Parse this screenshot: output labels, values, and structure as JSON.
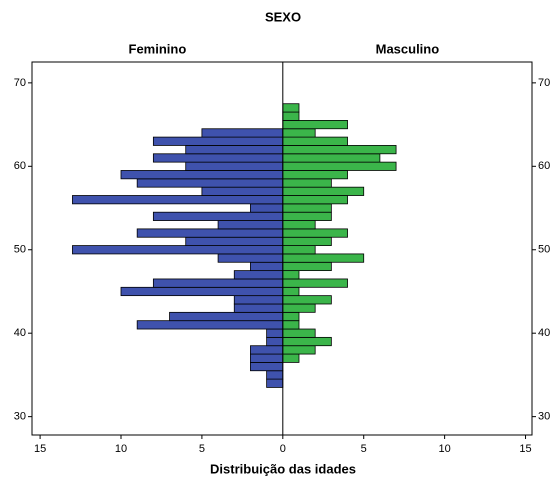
{
  "chart_data": {
    "type": "pyramid",
    "title": "SEXO",
    "xlabel": "Distribuição das idades",
    "y": [
      34,
      35,
      36,
      37,
      38,
      39,
      40,
      41,
      42,
      43,
      44,
      45,
      46,
      47,
      48,
      49,
      50,
      51,
      52,
      53,
      54,
      55,
      56,
      57,
      58,
      59,
      60,
      61,
      62,
      63,
      64,
      65,
      66,
      67
    ],
    "series": [
      {
        "name": "Feminino",
        "side": "left",
        "color": "#3f52ad",
        "values": [
          1,
          1,
          2,
          2,
          2,
          1,
          1,
          9,
          7,
          3,
          3,
          10,
          8,
          3,
          2,
          4,
          13,
          6,
          9,
          4,
          8,
          2,
          13,
          5,
          9,
          10,
          6,
          8,
          6,
          8,
          5,
          0,
          0,
          0
        ]
      },
      {
        "name": "Masculino",
        "side": "right",
        "color": "#3bb54a",
        "values": [
          0,
          0,
          0,
          1,
          2,
          3,
          2,
          1,
          1,
          2,
          3,
          1,
          4,
          1,
          3,
          5,
          2,
          3,
          4,
          2,
          3,
          3,
          4,
          5,
          3,
          4,
          7,
          6,
          7,
          4,
          2,
          4,
          1,
          1
        ]
      }
    ],
    "xlim": [
      -15.5,
      15.4
    ],
    "xticks": [
      {
        "value": -15,
        "label": "15"
      },
      {
        "value": -10,
        "label": "10"
      },
      {
        "value": -5,
        "label": "5"
      },
      0,
      5,
      10,
      15
    ],
    "ylim": [
      27.8,
      72.5
    ],
    "yticks": [
      30,
      40,
      50,
      60,
      70
    ]
  }
}
